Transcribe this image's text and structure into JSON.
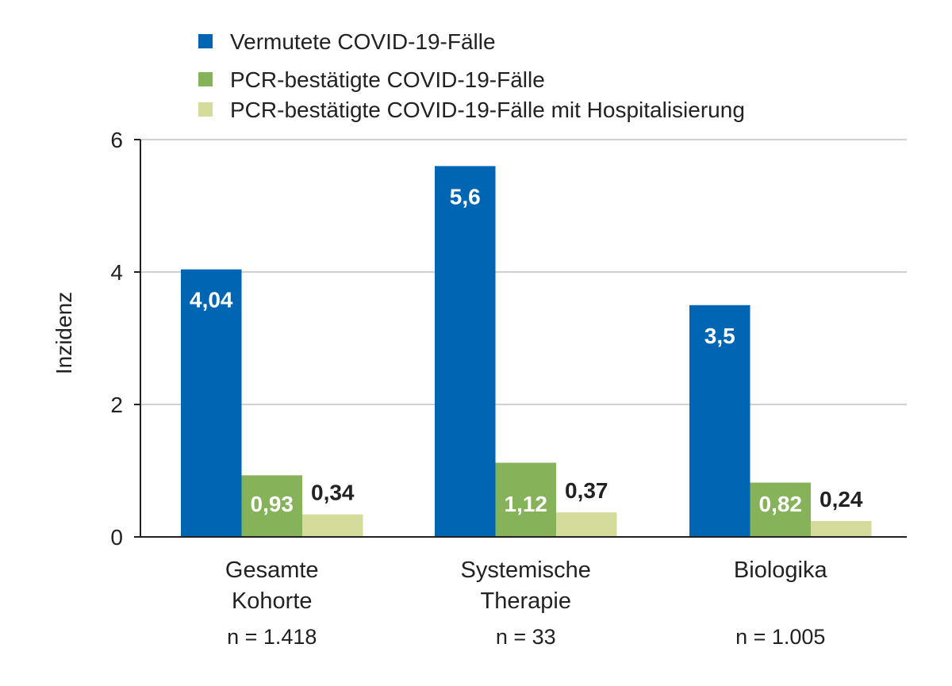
{
  "chart_data": {
    "type": "bar",
    "title": "",
    "xlabel": "",
    "ylabel": "Inzidenz",
    "ylim": [
      0,
      6
    ],
    "yticks": [
      0,
      2,
      4,
      6
    ],
    "grid": true,
    "legend_position": "top",
    "categories": [
      {
        "lines": [
          "Gesamte",
          "Kohorte"
        ],
        "n": "n = 1.418"
      },
      {
        "lines": [
          "Systemische",
          "Therapie"
        ],
        "n": "n = 33"
      },
      {
        "lines": [
          "Biologika"
        ],
        "n": "n = 1.005"
      }
    ],
    "series": [
      {
        "name": "Vermutete COVID-19-Fälle",
        "color": "#0066b3",
        "values": [
          4.04,
          5.6,
          3.5
        ],
        "labels": [
          "4,04",
          "5,6",
          "3,5"
        ]
      },
      {
        "name": "PCR-bestätigte COVID-19-Fälle",
        "color": "#86b25a",
        "values": [
          0.93,
          1.12,
          0.82
        ],
        "labels": [
          "0,93",
          "1,12",
          "0,82"
        ]
      },
      {
        "name": "PCR-bestätigte COVID-19-Fälle mit Hospitalisierung",
        "color": "#d5dc9b",
        "values": [
          0.34,
          0.37,
          0.24
        ],
        "labels": [
          "0,34",
          "0,37",
          "0,24"
        ]
      }
    ]
  }
}
